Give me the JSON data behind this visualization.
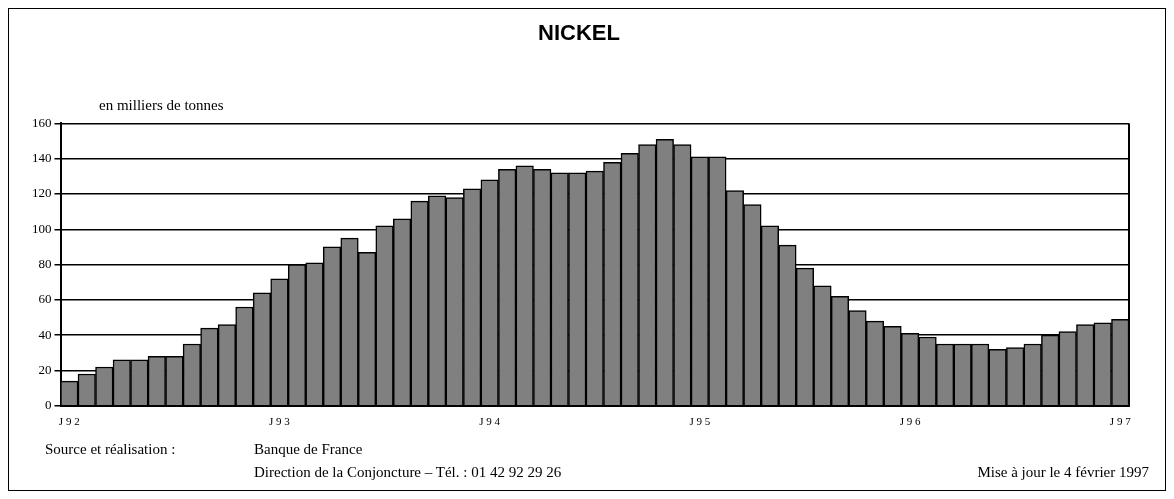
{
  "chart_data": {
    "type": "bar",
    "title": "NICKEL",
    "ylabel": "en milliers de tonnes",
    "categories": [
      "J 9 2",
      null,
      null,
      null,
      null,
      null,
      null,
      null,
      null,
      null,
      null,
      null,
      "J 9 3",
      null,
      null,
      null,
      null,
      null,
      null,
      null,
      null,
      null,
      null,
      null,
      "J 9 4",
      null,
      null,
      null,
      null,
      null,
      null,
      null,
      null,
      null,
      null,
      null,
      "J 9 5",
      null,
      null,
      null,
      null,
      null,
      null,
      null,
      null,
      null,
      null,
      null,
      "J 9 6",
      null,
      null,
      null,
      null,
      null,
      null,
      null,
      null,
      null,
      null,
      null,
      "J 9 7"
    ],
    "values": [
      14,
      18,
      22,
      26,
      26,
      28,
      28,
      35,
      44,
      46,
      56,
      64,
      72,
      80,
      81,
      90,
      95,
      87,
      102,
      106,
      116,
      119,
      118,
      123,
      128,
      134,
      136,
      134,
      132,
      132,
      133,
      138,
      143,
      148,
      151,
      148,
      141,
      141,
      122,
      114,
      102,
      91,
      78,
      68,
      62,
      54,
      48,
      45,
      41,
      39,
      35,
      35,
      35,
      32,
      33,
      35,
      40,
      42,
      46,
      47,
      49
    ],
    "color": "#808080",
    "ylim": [
      0,
      160
    ],
    "yticks": [
      0,
      20,
      40,
      60,
      80,
      100,
      120,
      140,
      160
    ],
    "grid": "y",
    "annotations": [
      "Source et réalisation :",
      "Banque de France",
      "Direction de la Conjoncture – Tél. : 01 42 92 29 26",
      "Mise à jour le 4 février 1997"
    ]
  }
}
